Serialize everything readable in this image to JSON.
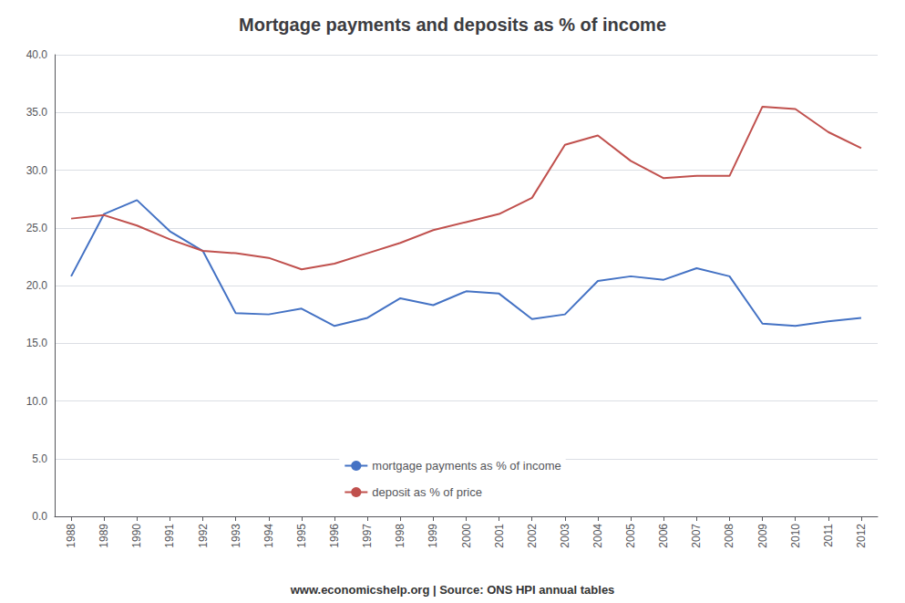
{
  "chart_data": {
    "type": "line",
    "title": "Mortgage payments and deposits as % of income",
    "annotations": [
      "www.economicshelp.org | Source: ONS HPI annual tables"
    ],
    "x": [
      1988,
      1989,
      1990,
      1991,
      1992,
      1993,
      1994,
      1995,
      1996,
      1997,
      1998,
      1999,
      2000,
      2001,
      2002,
      2003,
      2004,
      2005,
      2006,
      2007,
      2008,
      2009,
      2010,
      2011,
      2012
    ],
    "series": [
      {
        "name": "mortgage payments as % of income",
        "color": "#4472C4",
        "values": [
          20.8,
          26.2,
          27.4,
          24.7,
          23.0,
          17.6,
          17.5,
          18.0,
          16.5,
          17.2,
          18.9,
          18.3,
          19.5,
          19.3,
          17.1,
          17.5,
          20.4,
          20.8,
          20.5,
          21.5,
          20.8,
          16.7,
          16.5,
          16.9,
          17.2
        ]
      },
      {
        "name": "deposit as % of price",
        "color": "#C0504D",
        "values": [
          25.8,
          26.1,
          25.2,
          24.0,
          23.0,
          22.8,
          22.4,
          21.4,
          21.9,
          22.8,
          23.7,
          24.8,
          25.5,
          26.2,
          27.6,
          32.2,
          33.0,
          30.8,
          29.3,
          29.5,
          29.5,
          35.5,
          35.3,
          33.3,
          31.9
        ]
      }
    ],
    "xlim": [
      1987.5,
      2012.5
    ],
    "xticks": [
      1988,
      1989,
      1990,
      1991,
      1992,
      1993,
      1994,
      1995,
      1996,
      1997,
      1998,
      1999,
      2000,
      2001,
      2002,
      2003,
      2004,
      2005,
      2006,
      2007,
      2008,
      2009,
      2010,
      2011,
      2012
    ],
    "ylim": [
      0.0,
      40.0
    ],
    "yticks": [
      {
        "value": 0,
        "label": "0.0"
      },
      {
        "value": 5,
        "label": "5.0"
      },
      {
        "value": 10,
        "label": "10.0"
      },
      {
        "value": 15,
        "label": "15.0"
      },
      {
        "value": 20,
        "label": "20.0"
      },
      {
        "value": 25,
        "label": "25.0"
      },
      {
        "value": 30,
        "label": "30.0"
      },
      {
        "value": 35,
        "label": "35.0"
      },
      {
        "value": 40,
        "label": "40.0"
      }
    ],
    "grid": true,
    "legend": "bottom"
  }
}
